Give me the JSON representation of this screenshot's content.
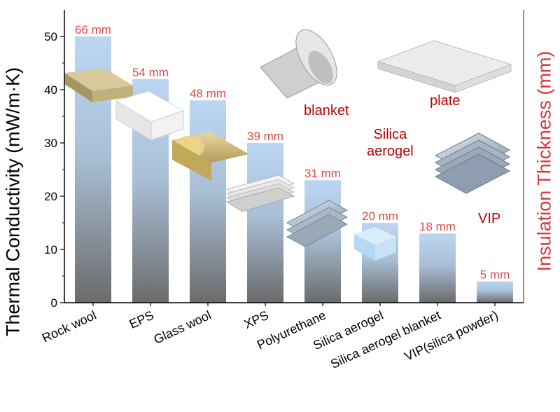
{
  "chart_data": {
    "type": "bar",
    "categories": [
      "Rock wool",
      "EPS",
      "Glass wool",
      "XPS",
      "Polyurethane",
      "Silica aerogel",
      "Silica aerogel blanket",
      "VIP(silica powder)"
    ],
    "values": [
      50,
      42,
      38,
      30,
      23,
      15,
      13,
      4
    ],
    "data_labels": [
      "66 mm",
      "54 mm",
      "48 mm",
      "39 mm",
      "31 mm",
      "20 mm",
      "18 mm",
      "5 mm"
    ],
    "ylabel": "Thermal Conductivity (mW/m·K)",
    "y2label": "Insulation Thickness (mm)",
    "ylim": [
      0,
      55
    ],
    "yticks": [
      0,
      10,
      20,
      30,
      40,
      50
    ],
    "grid": false,
    "legend": "none"
  },
  "photo_labels": {
    "blanket": "blanket",
    "plate": "plate",
    "silica": "Silica\naerogel",
    "vip": "VIP"
  },
  "colors": {
    "bar_top": "#b9d4f0",
    "bar_bottom": "#6e6e6e",
    "data_label": "#e04848",
    "right_axis": "#d9383a",
    "photo_label": "#c00000"
  }
}
